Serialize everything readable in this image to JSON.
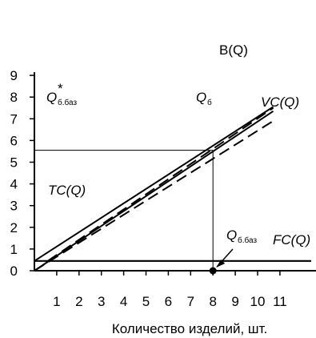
{
  "chart_data": {
    "type": "line",
    "xlabel": "Количество изделий, шт.",
    "ylabel": "",
    "xlim": [
      0,
      11
    ],
    "ylim": [
      0,
      9
    ],
    "x_ticks": [
      "1",
      "2",
      "3",
      "4",
      "5",
      "6",
      "7",
      "8",
      "9",
      "10",
      "11"
    ],
    "y_ticks": [
      "0",
      "1",
      "2",
      "3",
      "4",
      "5",
      "6",
      "7",
      "8",
      "9"
    ],
    "series": [
      {
        "name": "B(Q)",
        "style": "solid",
        "x": [
          0,
          10.7
        ],
        "y": [
          0,
          7.35
        ]
      },
      {
        "name": "TC(Q)",
        "style": "solid",
        "x": [
          0,
          10.7
        ],
        "y": [
          0.45,
          7.55
        ]
      },
      {
        "name": "VC(Q)",
        "style": "dashed",
        "x": [
          0,
          10.7
        ],
        "y": [
          0,
          6.9
        ]
      },
      {
        "name": "",
        "style": "dashed",
        "x": [
          0.6,
          10.7
        ],
        "y": [
          0.45,
          7.5
        ]
      },
      {
        "name": "FC(Q)",
        "style": "solid",
        "x": [
          0,
          12.4
        ],
        "y": [
          0.45,
          0.45
        ]
      }
    ],
    "annotations": {
      "q_star_label": "Q*б.баз",
      "q_star_main": "Q",
      "q_star_sup": "*",
      "q_star_sub": "б.баз",
      "q_b_label": "Qб",
      "q_b_main": "Q",
      "q_b_sub": "б",
      "q_bbaz_label": "Qб.баз",
      "q_bbaz_main": "Q",
      "q_bbaz_sub": "б.баз",
      "intersection": {
        "x": 8,
        "y": 5.55
      },
      "breakeven_point": {
        "x": 8,
        "y": 0
      }
    }
  }
}
